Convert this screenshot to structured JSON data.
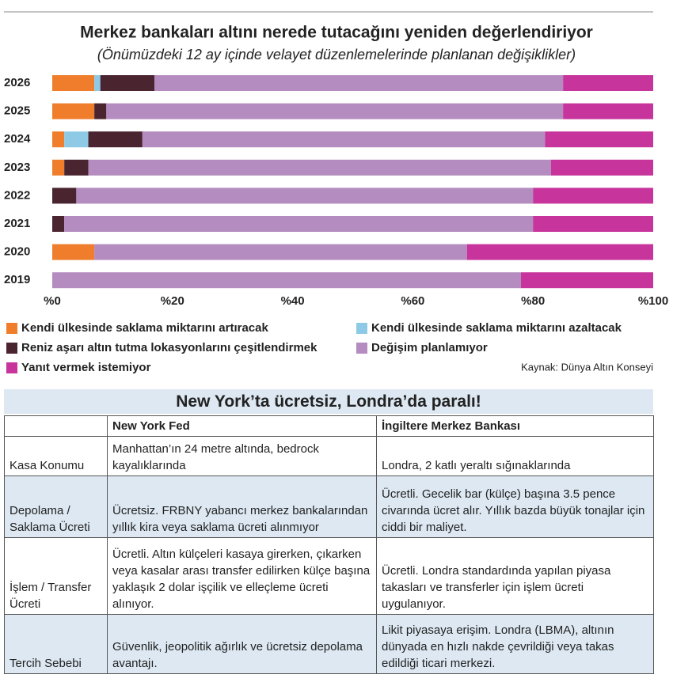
{
  "chart_data": {
    "type": "stacked_bar_horizontal",
    "title": "Merkez bankaları altını nerede tutacağını yeniden değerlendiriyor",
    "subtitle": "(Önümüzdeki 12 ay içinde velayet düzenlemelerinde planlanan değişiklikler)",
    "categories": [
      "2026",
      "2025",
      "2024",
      "2023",
      "2022",
      "2021",
      "2020",
      "2019"
    ],
    "series": [
      {
        "name": "Kendi ülkesinde saklama miktarını artıracak",
        "color": "#ef7d2b",
        "values": [
          7,
          7,
          2,
          2,
          0,
          0,
          7,
          0
        ]
      },
      {
        "name": "Kendi ülkesinde saklama miktarını azaltacak",
        "color": "#8ecae6",
        "values": [
          1,
          0,
          4,
          0,
          0,
          0,
          0,
          0
        ]
      },
      {
        "name": "Reniz aşarı altın tutma lokasyonlarını çeşitlendirmek",
        "color": "#4a2530",
        "values": [
          9,
          2,
          9,
          4,
          4,
          2,
          0,
          0
        ]
      },
      {
        "name": "Değişim planlamıyor",
        "color": "#b48cc0",
        "values": [
          68,
          76,
          67,
          77,
          76,
          78,
          62,
          78
        ]
      },
      {
        "name": "Yanıt vermek istemiyor",
        "color": "#c7349b",
        "values": [
          15,
          15,
          18,
          17,
          20,
          20,
          31,
          22
        ]
      }
    ],
    "xlim": [
      0,
      100
    ],
    "xticks": [
      {
        "value": 0,
        "label": "%0"
      },
      {
        "value": 20,
        "label": "%20"
      },
      {
        "value": 40,
        "label": "%40"
      },
      {
        "value": 60,
        "label": "%60"
      },
      {
        "value": 80,
        "label": "%80"
      },
      {
        "value": 100,
        "label": "%100"
      }
    ],
    "source": "Kaynak: Dünya Altın Konseyi"
  },
  "table": {
    "title": "New York’ta ücretsiz, Londra’da paralı!",
    "header": [
      "New York Fed",
      "İngiltere Merkez Bankası"
    ],
    "rows": [
      [
        "Kasa Konumu",
        "Manhattan’ın 24 metre altında, bedrock kayalıklarında",
        "Londra, 2 katlı yeraltı sığınaklarında"
      ],
      [
        "Depolama / Saklama Ücreti",
        "Ücretsiz. FRBNY yabancı merkez bankalarından yıllık kira veya saklama ücreti alınmıyor",
        "Ücretli. Gecelik bar (külçe) başına 3.5 pence civarında ücret alır. Yıllık bazda büyük tonajlar için ciddi bir maliyet."
      ],
      [
        "İşlem / Transfer Ücreti",
        "Ücretli. Altın külçeleri kasaya girerken, çıkarken veya kasalar arası transfer edilirken külçe başına yaklaşık 2 dolar işçilik ve elleçleme ücreti alınıyor.",
        "Ücretli. Londra standardında yapılan piyasa takasları ve transferler için işlem ücreti uygulanıyor."
      ],
      [
        "Tercih Sebebi",
        "Güvenlik, jeopolitik ağırlık ve ücretsiz depolama avantajı.",
        "Likit piyasaya erişim. Londra (LBMA), altının dünyada en hızlı nakde çevrildiği veya takas edildiği ticari merkezi."
      ]
    ]
  }
}
